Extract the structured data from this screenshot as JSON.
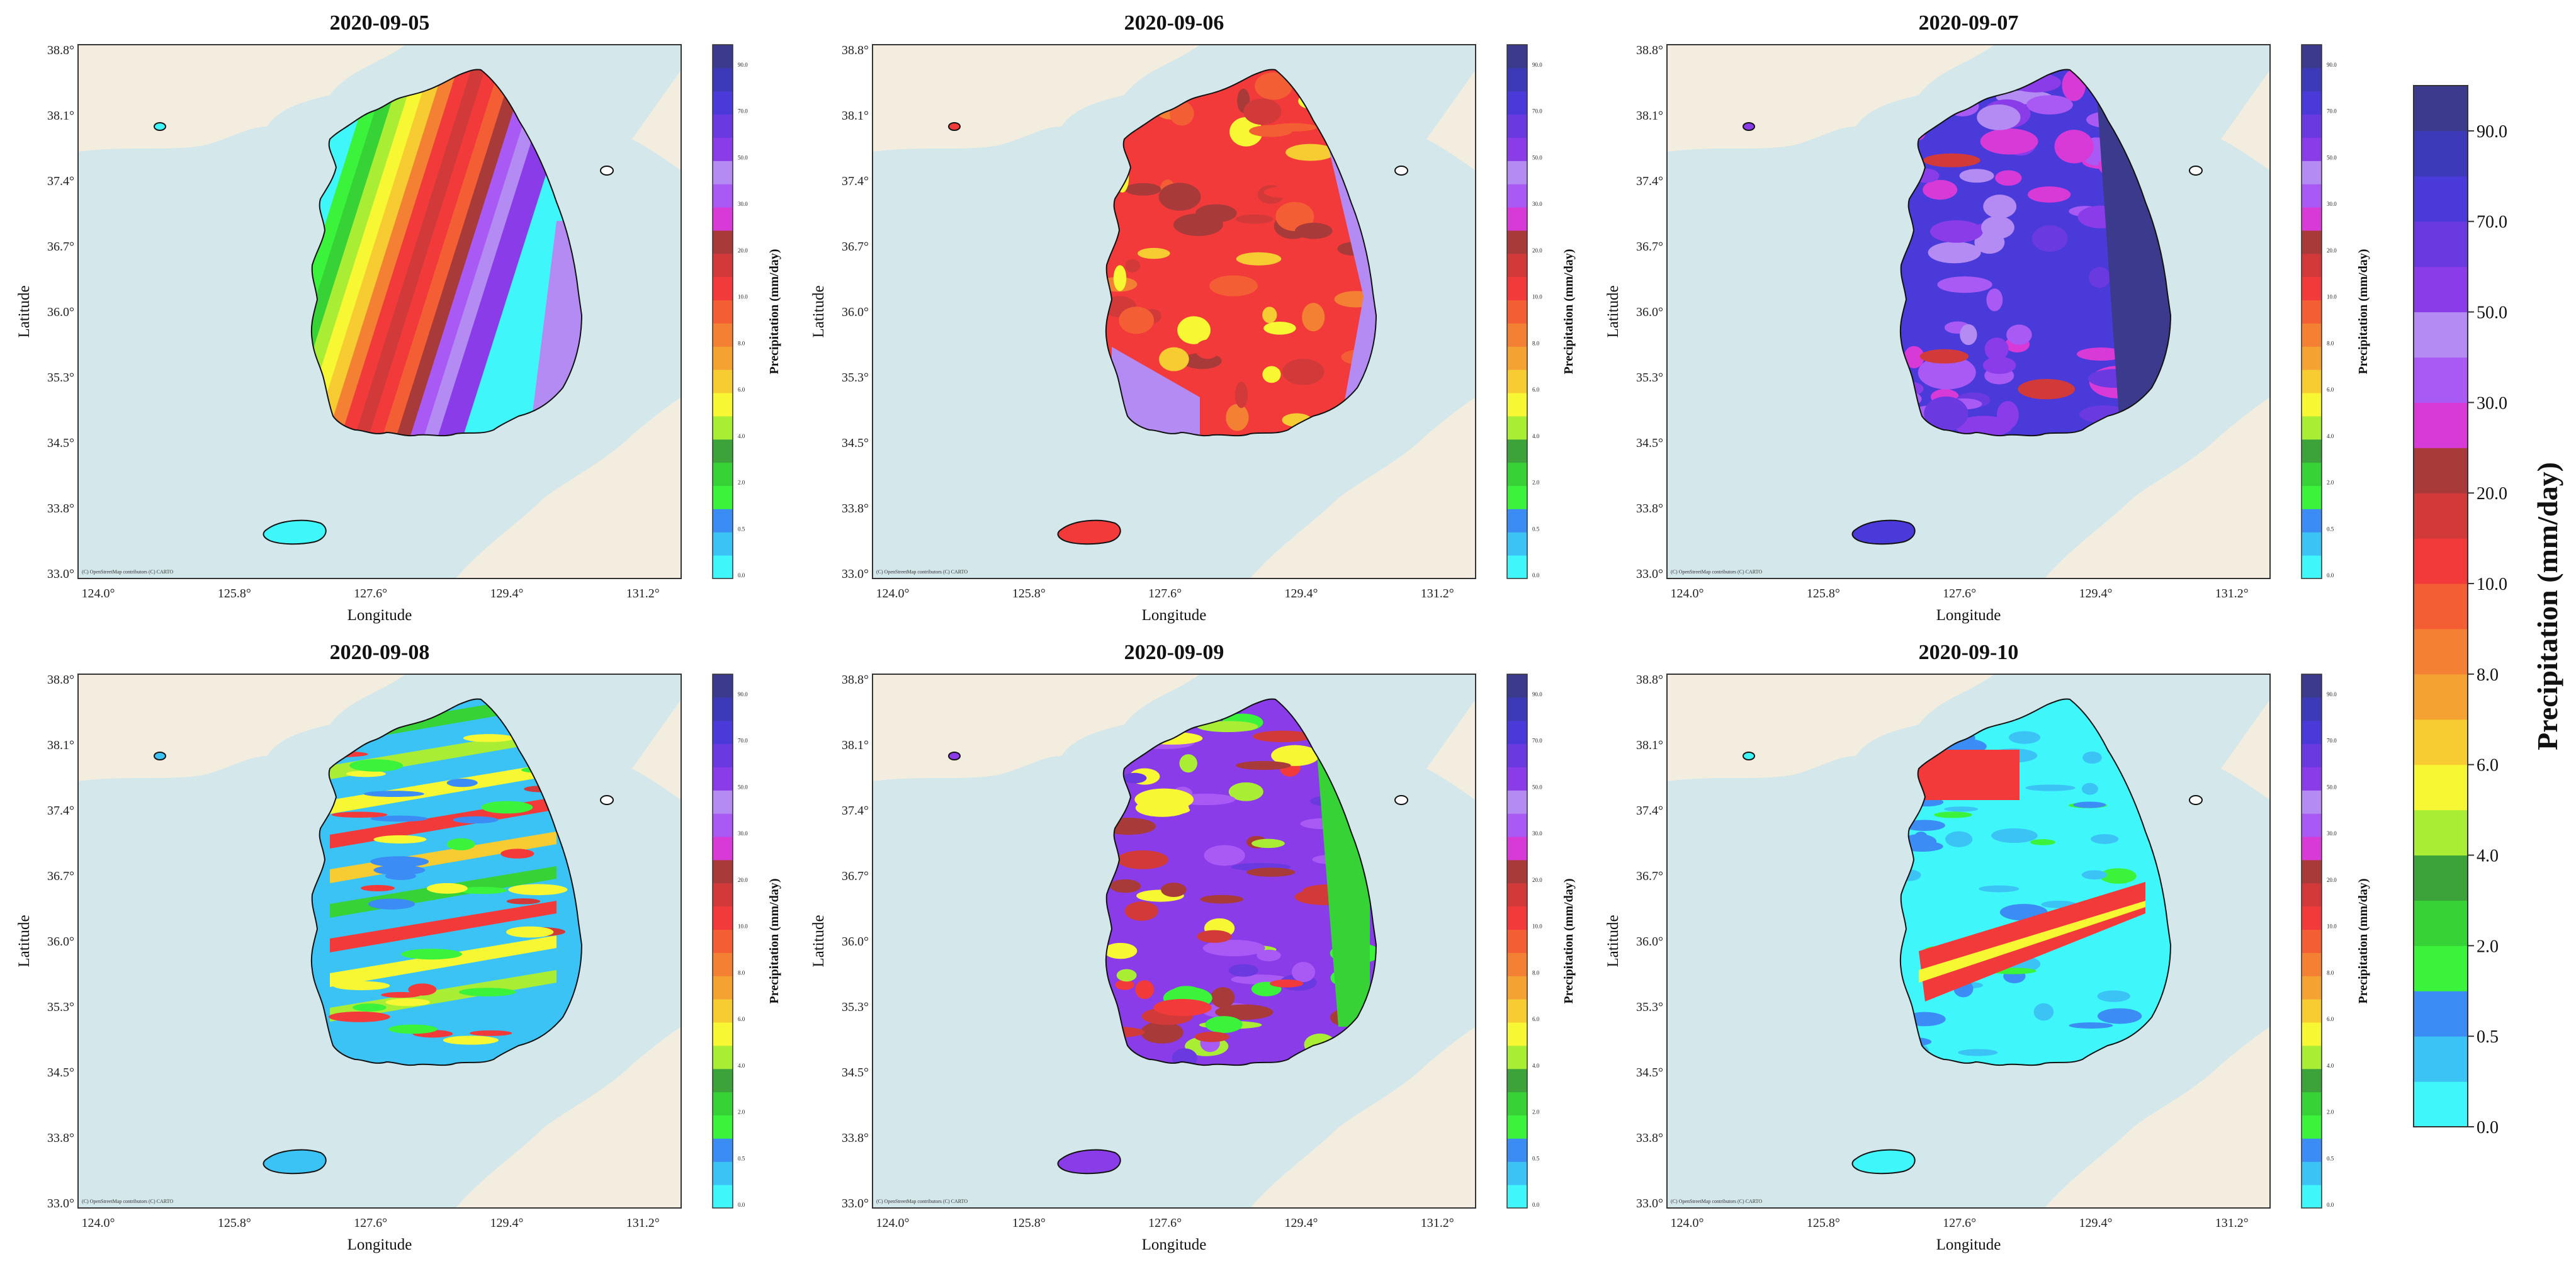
{
  "figure": {
    "panels": [
      {
        "title": "2020-09-05",
        "attribution": "(C) OpenStreetMap contributors (C) CARTO",
        "pattern": "sep05"
      },
      {
        "title": "2020-09-06",
        "attribution": "(C) OpenStreetMap contributors (C) CARTO",
        "pattern": "sep06"
      },
      {
        "title": "2020-09-07",
        "attribution": "(C) OpenStreetMap contributors (C) CARTO",
        "pattern": "sep07"
      },
      {
        "title": "2020-09-08",
        "attribution": "(C) OpenStreetMap contributors (C) CARTO",
        "pattern": "sep08"
      },
      {
        "title": "2020-09-09",
        "attribution": "(C) OpenStreetMap contributors (C) CARTO",
        "pattern": "sep09"
      },
      {
        "title": "2020-09-10",
        "attribution": "(C) OpenStreetMap contributors (C) CARTO",
        "pattern": "sep10"
      }
    ],
    "xlabel": "Longitude",
    "ylabel": "Latitude",
    "xticks": [
      "124.0°",
      "125.8°",
      "127.6°",
      "129.4°",
      "131.2°"
    ],
    "yticks": [
      "38.8°",
      "38.1°",
      "37.4°",
      "36.7°",
      "36.0°",
      "35.3°",
      "34.5°",
      "33.8°",
      "33.0°"
    ],
    "colorbar_label": "Precipitation (mm/day)",
    "small_colorbar_ticks": [
      "0.0",
      "0.5",
      "2.0",
      "4.0",
      "6.0",
      "8.0",
      "10.0",
      "20.0",
      "30.0",
      "50.0",
      "70.0",
      "90.0"
    ],
    "big_colorbar_ticks": [
      "0.0",
      "0.5",
      "2.0",
      "4.0",
      "6.0",
      "8.0",
      "10.0",
      "20.0",
      "30.0",
      "50.0",
      "70.0",
      "90.0"
    ],
    "colors": {
      "sea": "#d4e7ea",
      "land": "#f3ede0",
      "bins": [
        "#3ff7fb",
        "#3cc3f6",
        "#3b8cf4",
        "#3af33a",
        "#36d236",
        "#3ca33a",
        "#aaed35",
        "#f8f733",
        "#f7cb32",
        "#f4a232",
        "#f48033",
        "#f45e34",
        "#f23a3a",
        "#d23a3a",
        "#a83a3a",
        "#d83ad8",
        "#a95af5",
        "#b38bf3",
        "#8a3ce8",
        "#6a3ae0",
        "#4a3ad9",
        "#3c3ab8",
        "#3b3a8c"
      ]
    }
  }
}
